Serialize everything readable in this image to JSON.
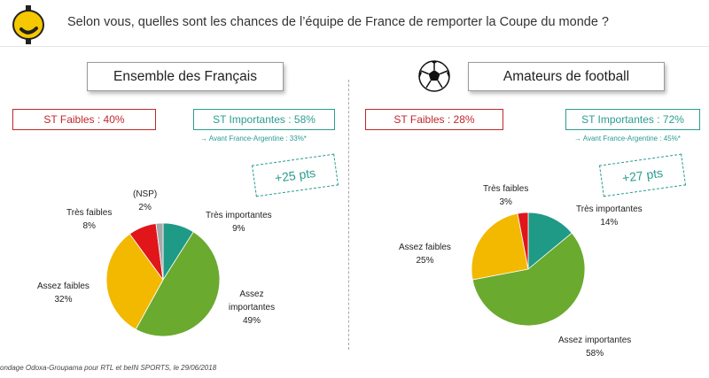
{
  "header": {
    "question": "Selon vous, quelles sont les chances de l’équipe de France de remporter la Coupe du monde ?"
  },
  "panels": [
    {
      "title": "Ensemble des Français",
      "st_faibles": "ST Faibles : 40%",
      "st_importantes": "ST Importantes : 58%",
      "note": "→ Avant France-Argentine : 33%*",
      "delta": "+25 pts"
    },
    {
      "title": "Amateurs de football",
      "st_faibles": "ST Faibles : 28%",
      "st_importantes": "ST Importantes : 72%",
      "note": "→ Avant France-Argentine : 45%*",
      "delta": "+27 pts"
    }
  ],
  "colors": {
    "tres_importantes": "#1e9a86",
    "assez_importantes": "#6aaa2f",
    "assez_faibles": "#f3b800",
    "tres_faibles": "#e0161b",
    "nsp": "#a8a8a8"
  },
  "icons": [
    "logo-icon",
    "football-icon"
  ],
  "chart_data": [
    {
      "type": "pie",
      "title": "Ensemble des Français",
      "slices": [
        {
          "label": "Très importantes",
          "value": 9,
          "value_label": "9%",
          "color": "#1e9a86"
        },
        {
          "label": "Assez importantes",
          "value": 49,
          "value_label": "49%",
          "color": "#6aaa2f"
        },
        {
          "label": "Assez faibles",
          "value": 32,
          "value_label": "32%",
          "color": "#f3b800"
        },
        {
          "label": "Très faibles",
          "value": 8,
          "value_label": "8%",
          "color": "#e0161b"
        },
        {
          "label": "(NSP)",
          "value": 2,
          "value_label": "2%",
          "color": "#a8a8a8"
        }
      ]
    },
    {
      "type": "pie",
      "title": "Amateurs de football",
      "slices": [
        {
          "label": "Très importantes",
          "value": 14,
          "value_label": "14%",
          "color": "#1e9a86"
        },
        {
          "label": "Assez importantes",
          "value": 58,
          "value_label": "58%",
          "color": "#6aaa2f"
        },
        {
          "label": "Assez faibles",
          "value": 25,
          "value_label": "25%",
          "color": "#f3b800"
        },
        {
          "label": "Très faibles",
          "value": 3,
          "value_label": "3%",
          "color": "#e0161b"
        }
      ]
    }
  ],
  "footer": {
    "source": "ondage Odoxa-Groupama pour RTL et beIN SPORTS, le 29/06/2018"
  }
}
